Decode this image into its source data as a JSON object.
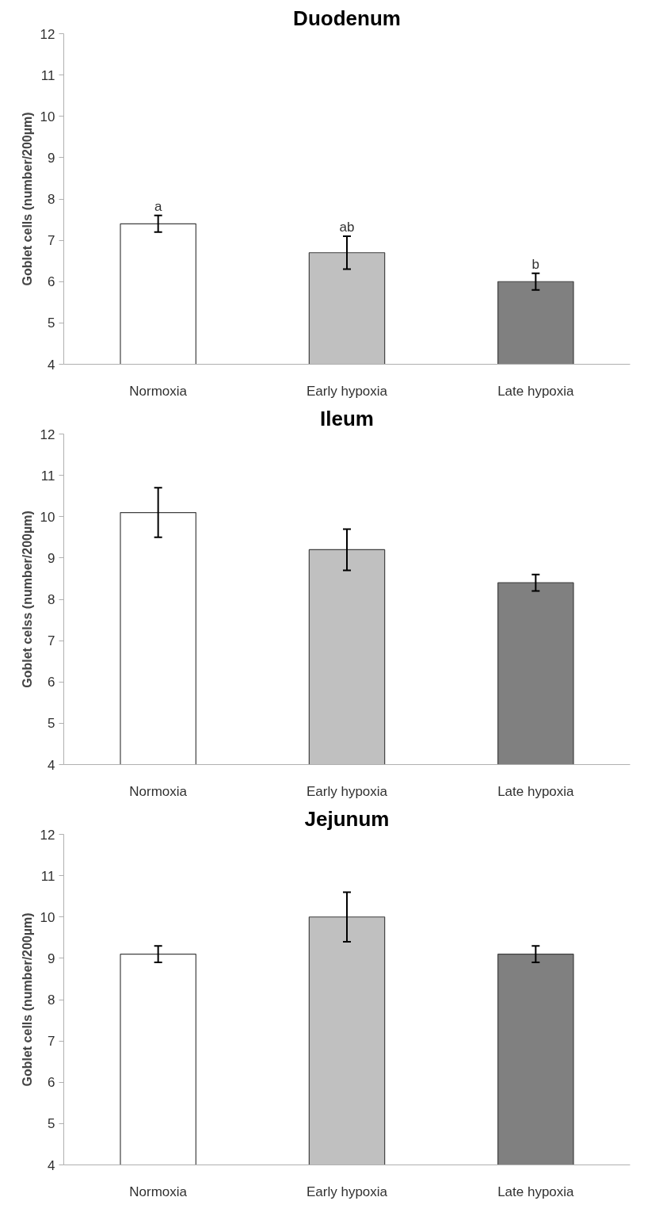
{
  "chart_data": [
    {
      "type": "bar",
      "title": "Duodenum",
      "ylabel": "Goblet cells (number/200µm)",
      "categories": [
        "Normoxia",
        "Early hypoxia",
        "Late hypoxia"
      ],
      "values": [
        7.4,
        6.7,
        6.0
      ],
      "errors": [
        0.2,
        0.4,
        0.2
      ],
      "colors": [
        "#ffffff",
        "#c0c0c0",
        "#808080"
      ],
      "ylim": [
        4,
        12
      ],
      "yticks": [
        4,
        5,
        6,
        7,
        8,
        9,
        10,
        11,
        12
      ],
      "grid": false,
      "annotations": [
        {
          "text": "a",
          "x": "Normoxia",
          "y": 7.6
        },
        {
          "text": "ab",
          "x": "Early hypoxia",
          "y": 7.1
        },
        {
          "text": "b",
          "x": "Late hypoxia",
          "y": 6.2
        }
      ]
    },
    {
      "type": "bar",
      "title": "Ileum",
      "ylabel": "Goblet celss (number/200µm)",
      "categories": [
        "Normoxia",
        "Early hypoxia",
        "Late hypoxia"
      ],
      "values": [
        10.1,
        9.2,
        8.4
      ],
      "errors": [
        0.6,
        0.5,
        0.2
      ],
      "colors": [
        "#ffffff",
        "#c0c0c0",
        "#808080"
      ],
      "ylim": [
        4,
        12
      ],
      "yticks": [
        4,
        5,
        6,
        7,
        8,
        9,
        10,
        11,
        12
      ],
      "grid": false
    },
    {
      "type": "bar",
      "title": "Jejunum",
      "ylabel": "Goblet cells (number/200µm)",
      "categories": [
        "Normoxia",
        "Early hypoxia",
        "Late hypoxia"
      ],
      "values": [
        9.1,
        10.0,
        9.1
      ],
      "errors": [
        0.2,
        0.6,
        0.2
      ],
      "colors": [
        "#ffffff",
        "#c0c0c0",
        "#808080"
      ],
      "ylim": [
        4,
        12
      ],
      "yticks": [
        4,
        5,
        6,
        7,
        8,
        9,
        10,
        11,
        12
      ],
      "grid": false
    }
  ]
}
